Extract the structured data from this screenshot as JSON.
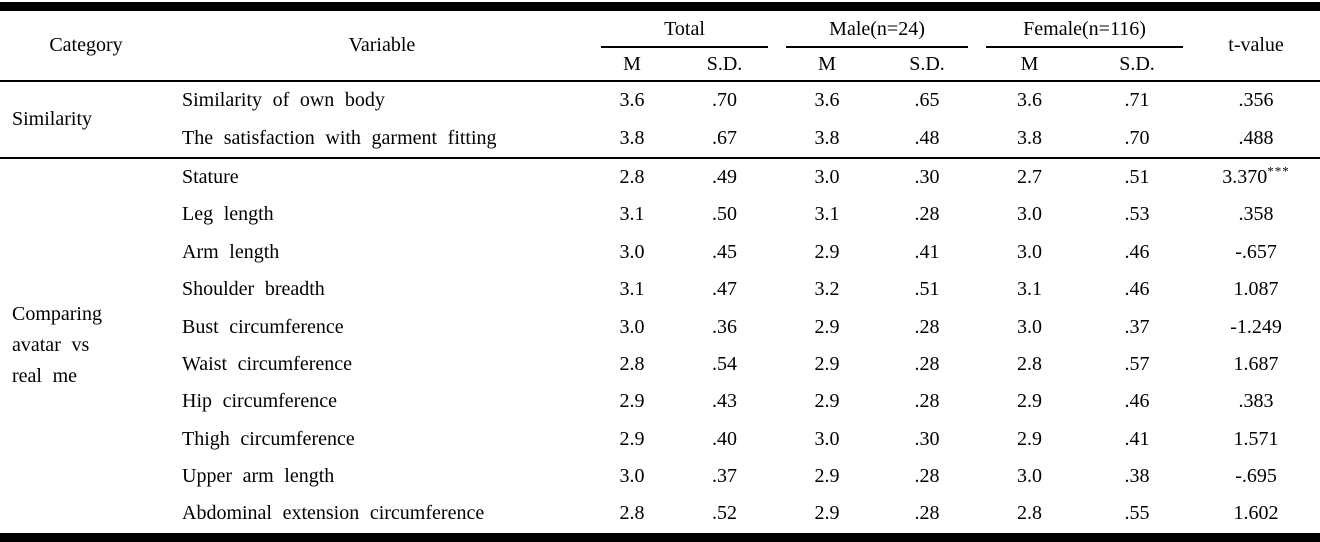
{
  "colors": {
    "text": "#000000",
    "rule": "#000000",
    "background": "#ffffff"
  },
  "table": {
    "columns": {
      "category": "Category",
      "variable": "Variable",
      "groups": [
        {
          "label": "Total",
          "sub": [
            "M",
            "S.D."
          ]
        },
        {
          "label": "Male(n=24)",
          "sub": [
            "M",
            "S.D."
          ]
        },
        {
          "label": "Female(n=116)",
          "sub": [
            "M",
            "S.D."
          ]
        }
      ],
      "tvalue": "t-value"
    },
    "sections": [
      {
        "category": "Similarity",
        "rows": [
          {
            "variable": "Similarity of own body",
            "values": [
              "3.6",
              ".70",
              "3.6",
              ".65",
              "3.6",
              ".71"
            ],
            "t": ".356",
            "t_sup": ""
          },
          {
            "variable": "The satisfaction with garment fitting",
            "values": [
              "3.8",
              ".67",
              "3.8",
              ".48",
              "3.8",
              ".70"
            ],
            "t": ".488",
            "t_sup": ""
          }
        ]
      },
      {
        "category": "Comparing avatar vs real me",
        "rows": [
          {
            "variable": "Stature",
            "values": [
              "2.8",
              ".49",
              "3.0",
              ".30",
              "2.7",
              ".51"
            ],
            "t": "3.370",
            "t_sup": "***"
          },
          {
            "variable": "Leg length",
            "values": [
              "3.1",
              ".50",
              "3.1",
              ".28",
              "3.0",
              ".53"
            ],
            "t": ".358",
            "t_sup": ""
          },
          {
            "variable": "Arm length",
            "values": [
              "3.0",
              ".45",
              "2.9",
              ".41",
              "3.0",
              ".46"
            ],
            "t": "-.657",
            "t_sup": ""
          },
          {
            "variable": "Shoulder breadth",
            "values": [
              "3.1",
              ".47",
              "3.2",
              ".51",
              "3.1",
              ".46"
            ],
            "t": "1.087",
            "t_sup": ""
          },
          {
            "variable": "Bust circumference",
            "values": [
              "3.0",
              ".36",
              "2.9",
              ".28",
              "3.0",
              ".37"
            ],
            "t": "-1.249",
            "t_sup": ""
          },
          {
            "variable": "Waist circumference",
            "values": [
              "2.8",
              ".54",
              "2.9",
              ".28",
              "2.8",
              ".57"
            ],
            "t": "1.687",
            "t_sup": ""
          },
          {
            "variable": "Hip circumference",
            "values": [
              "2.9",
              ".43",
              "2.9",
              ".28",
              "2.9",
              ".46"
            ],
            "t": ".383",
            "t_sup": ""
          },
          {
            "variable": "Thigh circumference",
            "values": [
              "2.9",
              ".40",
              "3.0",
              ".30",
              "2.9",
              ".41"
            ],
            "t": "1.571",
            "t_sup": ""
          },
          {
            "variable": "Upper arm length",
            "values": [
              "3.0",
              ".37",
              "2.9",
              ".28",
              "3.0",
              ".38"
            ],
            "t": "-.695",
            "t_sup": ""
          },
          {
            "variable": "Abdominal extension circumference",
            "values": [
              "2.8",
              ".52",
              "2.9",
              ".28",
              "2.8",
              ".55"
            ],
            "t": "1.602",
            "t_sup": ""
          }
        ]
      }
    ]
  }
}
